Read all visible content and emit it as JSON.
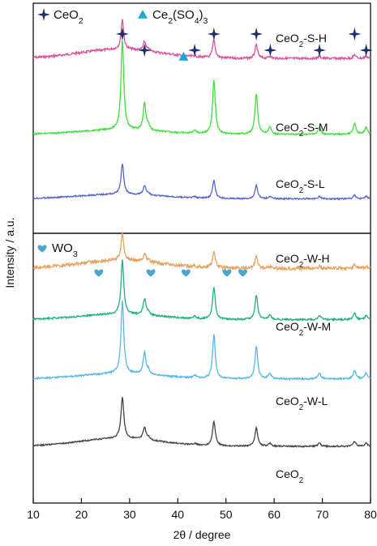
{
  "chart_data": {
    "type": "line",
    "xlabel": "2θ / degree",
    "ylabel": "Intensity / a.u.",
    "xlim": [
      10,
      80
    ],
    "xticks": [
      "10",
      "20",
      "30",
      "40",
      "50",
      "60",
      "70",
      "80"
    ],
    "units": "a.u.",
    "panels": [
      {
        "legend": [
          {
            "symbol": "star",
            "label": "CeO₂"
          },
          {
            "symbol": "triangle",
            "label": "Ce₂(SO₄)₃"
          }
        ],
        "series": [
          {
            "name": "CeO₂-S-H",
            "color": "#d9529c",
            "baseline": 0.24,
            "noise": 0.01,
            "scale": 0.13,
            "curve_rise": 0.04,
            "peak_width": 0.32
          },
          {
            "name": "CeO₂-S-M",
            "color": "#3fdf3a",
            "baseline": 0.57,
            "noise": 0.006,
            "scale": 0.39,
            "curve_rise": 0.02,
            "peak_width": 0.34
          },
          {
            "name": "CeO₂-S-L",
            "color": "#5b63c8",
            "baseline": 0.85,
            "noise": 0.006,
            "scale": 0.13,
            "curve_rise": 0.02,
            "peak_width": 0.34
          }
        ],
        "markers": [
          {
            "symbol": "star",
            "x": [
              28.5,
              33.1,
              43.5,
              47.5,
              56.3,
              59.2,
              69.4,
              76.7,
              79.1
            ]
          },
          {
            "symbol": "triangle",
            "x": [
              41.2
            ]
          }
        ]
      },
      {
        "legend": [
          {
            "symbol": "heart",
            "label": "WO₃"
          }
        ],
        "series": [
          {
            "name": "CeO₂-W-H",
            "color": "#e8a15c",
            "baseline": 0.13,
            "noise": 0.012,
            "scale": 0.1,
            "curve_rise": 0.03,
            "peak_width": 0.34
          },
          {
            "name": "CeO₂-W-M",
            "color": "#1fb179",
            "baseline": 0.32,
            "noise": 0.006,
            "scale": 0.2,
            "curve_rise": 0.02,
            "peak_width": 0.34
          },
          {
            "name": "CeO₂-W-L",
            "color": "#56b6e6",
            "baseline": 0.54,
            "noise": 0.006,
            "scale": 0.27,
            "curve_rise": 0.02,
            "peak_width": 0.34
          },
          {
            "name": "CeO₂",
            "color": "#444444",
            "baseline": 0.79,
            "noise": 0.005,
            "scale": 0.15,
            "curve_rise": 0.03,
            "peak_width": 0.36
          }
        ],
        "markers": [
          {
            "symbol": "heart",
            "x": [
              23.6,
              34.4,
              41.7,
              50.2,
              53.5
            ]
          }
        ]
      }
    ],
    "peaks": [
      {
        "x": 28.5,
        "rel": 1.0
      },
      {
        "x": 33.1,
        "rel": 0.3
      },
      {
        "x": 47.5,
        "rel": 0.6
      },
      {
        "x": 56.3,
        "rel": 0.45
      },
      {
        "x": 59.1,
        "rel": 0.08
      },
      {
        "x": 69.4,
        "rel": 0.08
      },
      {
        "x": 76.7,
        "rel": 0.12
      },
      {
        "x": 79.1,
        "rel": 0.08
      },
      {
        "x": 43.5,
        "rel": 0.04
      },
      {
        "x": 33.9,
        "rel": 0.05
      }
    ],
    "grid": false
  },
  "colors": {
    "marker": "#1c2f6b",
    "triangle": "#1aa6d6",
    "heart": "#4aa6cc"
  }
}
